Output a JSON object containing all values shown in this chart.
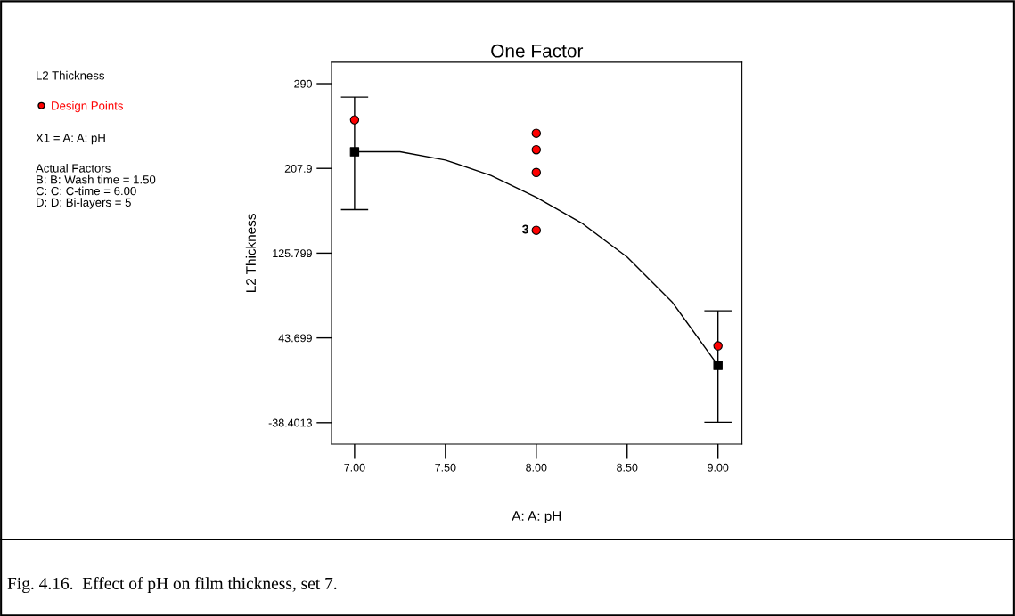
{
  "chart_data": {
    "type": "scatter",
    "title": "One Factor",
    "xlabel": "A: A: pH",
    "ylabel": "L2 Thickness",
    "annotations": [
      "L2 Thickness",
      "X1 = A: A: pH",
      "Actual Factors\nB: B: Wash time = 1.50\nC: C: C-time = 6.00\nD: D: Bi-layers = 5",
      "Fig. 4.16.  Effect of pH on film thickness, set 7.",
      {
        "text": "3",
        "x": 8.0,
        "y": 148
      }
    ],
    "series": [
      {
        "type": "line",
        "color": "#000000",
        "x": [
          7.0,
          7.25,
          7.5,
          7.75,
          8.0,
          8.25,
          8.5,
          8.75,
          9.0
        ],
        "values": [
          224,
          224,
          216,
          201,
          180,
          155,
          122,
          78,
          17
        ]
      },
      {
        "type": "scatter",
        "color": "#000000",
        "marker": "square",
        "x": [
          7.0,
          9.0
        ],
        "values": [
          224,
          17
        ],
        "errors": [
          [
            168,
            277
          ],
          [
            -38,
            70
          ]
        ]
      },
      {
        "name": "Design Points",
        "color": "#ff0000",
        "marker": "circle",
        "x": [
          7.0,
          8.0,
          8.0,
          8.0,
          8.0,
          9.0
        ],
        "values": [
          255,
          242,
          226,
          204,
          148,
          36
        ]
      }
    ],
    "xlim": [
      6.873,
      9.132
    ],
    "ylim": [
      -59.2,
      310.8
    ],
    "xticks": [
      {
        "value": 7.0,
        "label": "7.00"
      },
      {
        "value": 7.5,
        "label": "7.50"
      },
      {
        "value": 8.0,
        "label": "8.00"
      },
      {
        "value": 8.5,
        "label": "8.50"
      },
      {
        "value": 9.0,
        "label": "9.00"
      }
    ],
    "yticks": [
      290,
      207.9,
      125.799,
      43.699,
      -38.4013
    ],
    "legend": "left",
    "grid": false
  }
}
